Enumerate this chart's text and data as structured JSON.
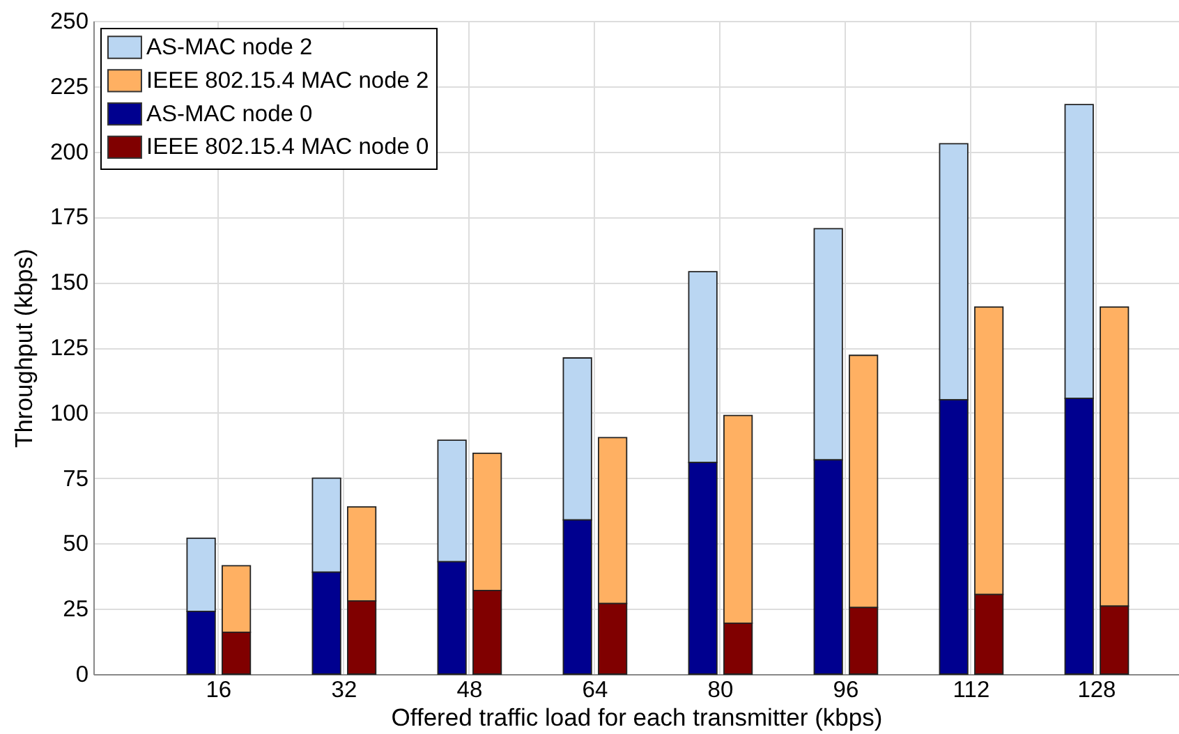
{
  "chart_data": {
    "type": "bar",
    "xlabel": "Offered traffic load for each transmitter (kbps)",
    "ylabel": "Throughput (kbps)",
    "categories": [
      "16",
      "32",
      "48",
      "64",
      "80",
      "96",
      "112",
      "128"
    ],
    "series": [
      {
        "name": "AS-MAC node 2",
        "color": "#bad6f2",
        "base": [
          24,
          39,
          43,
          59,
          81,
          82,
          105,
          105.5
        ],
        "values": [
          28,
          36,
          46.5,
          62,
          73,
          88.5,
          98,
          112.5
        ]
      },
      {
        "name": "IEEE 802.15.4 MAC node 2",
        "color": "#ffb062",
        "base": [
          16,
          28,
          32,
          27,
          19.5,
          25.5,
          30.5,
          26
        ],
        "values": [
          25.5,
          36,
          52.5,
          63.5,
          79.5,
          96.5,
          110,
          114.5
        ]
      },
      {
        "name": "AS-MAC node 0",
        "color": "#00008f",
        "values": [
          24,
          39,
          43,
          59,
          81,
          82,
          105,
          105.5
        ]
      },
      {
        "name": "IEEE 802.15.4 MAC node 0",
        "color": "#800000",
        "values": [
          16,
          28,
          32,
          27,
          19.5,
          25.5,
          30.5,
          26
        ]
      }
    ],
    "ylim": [
      0,
      250
    ],
    "yticks": [
      0,
      25,
      50,
      75,
      100,
      125,
      150,
      175,
      200,
      225,
      250
    ],
    "grid": true,
    "legend": "top left"
  }
}
